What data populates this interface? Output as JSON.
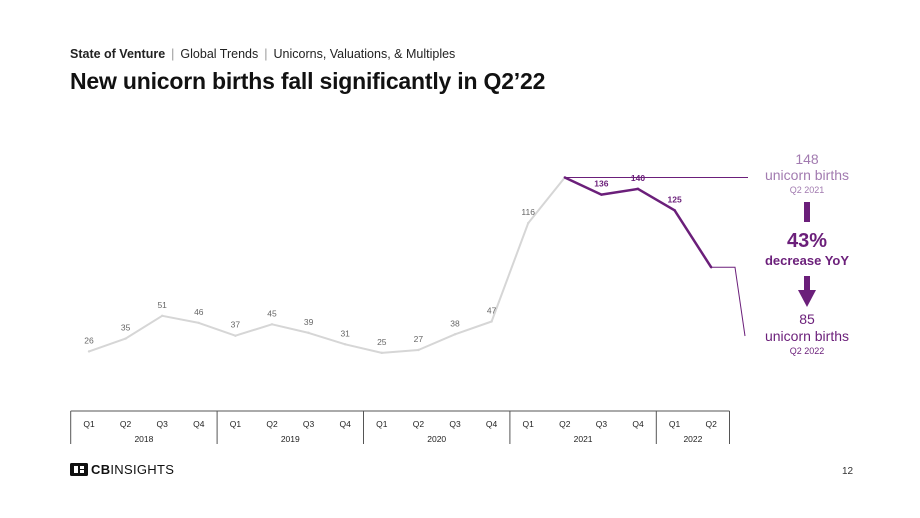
{
  "header": {
    "breadcrumb": {
      "section": "State of Venture",
      "topic": "Global Trends",
      "subtopic": "Unicorns, Valuations, & Multiples"
    },
    "title": "New unicorn births fall significantly in Q2’22"
  },
  "chart_data": {
    "type": "line",
    "title": "",
    "xlabel": "",
    "ylabel": "",
    "grid": false,
    "legend": "none",
    "categories": [
      "Q1",
      "Q2",
      "Q3",
      "Q4",
      "Q1",
      "Q2",
      "Q3",
      "Q4",
      "Q1",
      "Q2",
      "Q3",
      "Q4",
      "Q1",
      "Q2",
      "Q3",
      "Q4",
      "Q1",
      "Q2"
    ],
    "years": [
      {
        "label": "2018",
        "span": 4
      },
      {
        "label": "2019",
        "span": 4
      },
      {
        "label": "2020",
        "span": 4
      },
      {
        "label": "2021",
        "span": 4
      },
      {
        "label": "2022",
        "span": 2
      }
    ],
    "values": [
      26,
      35,
      51,
      46,
      37,
      45,
      39,
      31,
      25,
      27,
      38,
      47,
      116,
      148,
      136,
      140,
      125,
      85
    ],
    "data_labels": [
      "26",
      "35",
      "51",
      "46",
      "37",
      "45",
      "39",
      "31",
      "25",
      "27",
      "38",
      "47",
      "116",
      "",
      "136",
      "140",
      "125",
      ""
    ],
    "highlight_from_index": 13,
    "colors": {
      "base_line": "#d6d6d6",
      "highlight_line": "#6b1f7a",
      "label": "#666666",
      "label_highlight": "#6b1f7a",
      "callout_light": "#a27bb0",
      "axis": "#555555"
    },
    "callout": {
      "start": {
        "value": "148",
        "unit": "unicorn births",
        "period": "Q2 2021"
      },
      "change": {
        "value": "43%",
        "text": "decrease YoY"
      },
      "end": {
        "value": "85",
        "unit": "unicorn births",
        "period": "Q2 2022"
      }
    }
  },
  "footer": {
    "logo": {
      "bold": "CB",
      "rest": "INSIGHTS"
    },
    "page_number": "12"
  }
}
